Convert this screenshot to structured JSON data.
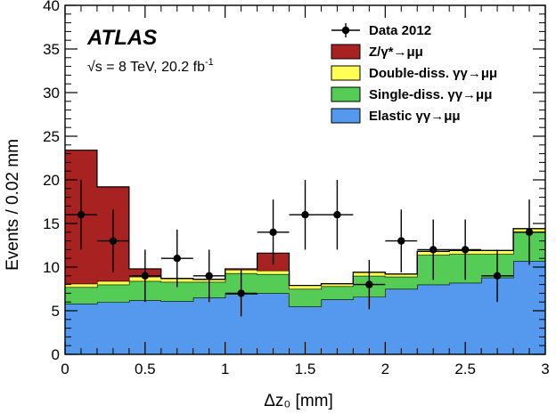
{
  "chart_data": {
    "type": "bar",
    "stacked": true,
    "xlabel": "Δz₀ [mm]",
    "ylabel": "Events / 0.02 mm",
    "xlim": [
      0,
      3
    ],
    "ylim": [
      0,
      40
    ],
    "x_ticks": [
      "0",
      "0.5",
      "1",
      "1.5",
      "2",
      "2.5",
      "3"
    ],
    "y_ticks": [
      "0",
      "5",
      "10",
      "15",
      "20",
      "25",
      "30",
      "35",
      "40"
    ],
    "bin_edges": [
      0,
      0.2,
      0.4,
      0.6,
      0.8,
      1.0,
      1.2,
      1.4,
      1.6,
      1.8,
      2.0,
      2.2,
      2.4,
      2.6,
      2.8,
      3.0
    ],
    "series": [
      {
        "name": "Elastic  γγ→μμ",
        "color": "#5599ee",
        "values": [
          5.8,
          6.0,
          6.2,
          6.1,
          6.5,
          6.9,
          7.0,
          5.5,
          6.3,
          6.6,
          7.5,
          8.0,
          8.2,
          8.8,
          10.7
        ]
      },
      {
        "name": "Single-diss.  γγ→μμ",
        "color": "#55cc55",
        "values": [
          1.9,
          2.0,
          2.2,
          2.2,
          1.8,
          2.4,
          2.2,
          2.0,
          1.5,
          2.4,
          1.4,
          3.4,
          3.3,
          2.7,
          3.3
        ]
      },
      {
        "name": "Double-diss.  γγ→μμ",
        "color": "#ffff55",
        "values": [
          0.4,
          0.4,
          0.5,
          0.4,
          0.3,
          0.4,
          0.4,
          0.4,
          0.3,
          0.4,
          0.3,
          0.4,
          0.4,
          0.4,
          0.4
        ]
      },
      {
        "name": "Z/γ*→μμ",
        "color": "#a82222",
        "values": [
          15.3,
          10.8,
          0.9,
          0,
          0,
          0.1,
          2.0,
          0,
          0,
          0,
          0,
          0,
          0,
          0,
          0
        ]
      }
    ],
    "data_points": {
      "name": "Data 2012",
      "x": [
        0.1,
        0.3,
        0.5,
        0.7,
        0.9,
        1.1,
        1.3,
        1.5,
        1.7,
        1.9,
        2.1,
        2.3,
        2.5,
        2.7,
        2.9
      ],
      "y": [
        16,
        13,
        9,
        11,
        9,
        7,
        14,
        16,
        16,
        8,
        13,
        12,
        12,
        9,
        14
      ],
      "err": [
        4.0,
        3.6,
        3.0,
        3.3,
        3.0,
        2.65,
        3.74,
        4.0,
        4.0,
        2.83,
        3.6,
        3.46,
        3.46,
        3.0,
        3.74
      ]
    },
    "legend_order": [
      "Data 2012",
      "Z/γ*→μμ",
      "Double-diss.  γγ→μμ",
      "Single-diss.  γγ→μμ",
      "Elastic  γγ→μμ"
    ],
    "legend_position": "top-right",
    "grid": false
  },
  "annotations": {
    "experiment": "ATLAS",
    "energy_prefix": "√s = 8 TeV, 20.2 fb",
    "energy_sup": "-1"
  }
}
